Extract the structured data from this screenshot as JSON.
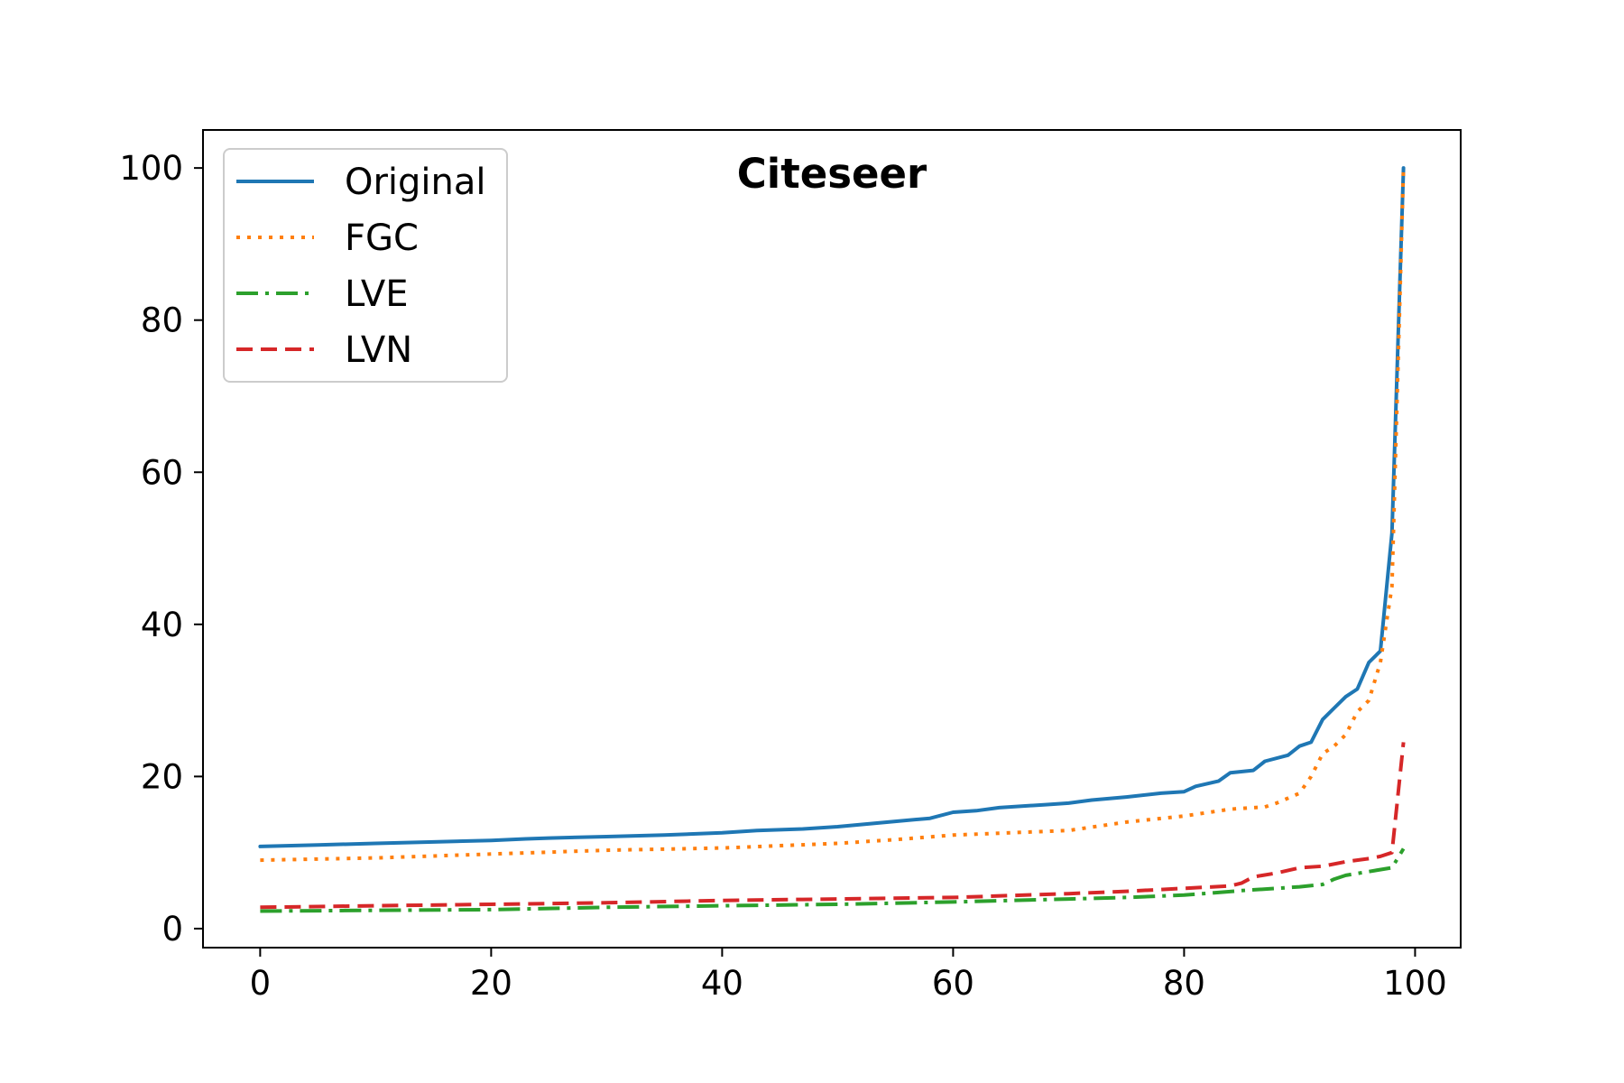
{
  "chart_data": {
    "type": "line",
    "title": "Citeseer",
    "xlabel": "",
    "ylabel": "",
    "xlim": [
      -4.95,
      103.95
    ],
    "ylim": [
      -2.5,
      105
    ],
    "xticks": [
      0,
      20,
      40,
      60,
      80,
      100
    ],
    "yticks": [
      0,
      20,
      40,
      60,
      80,
      100
    ],
    "grid": false,
    "legend_position": "top-left",
    "series": [
      {
        "name": "Original",
        "color": "#1f77b4",
        "style": "solid",
        "points": [
          [
            0,
            10.8
          ],
          [
            5,
            11.0
          ],
          [
            10,
            11.2
          ],
          [
            15,
            11.4
          ],
          [
            20,
            11.6
          ],
          [
            23,
            11.8
          ],
          [
            25,
            11.9
          ],
          [
            30,
            12.1
          ],
          [
            35,
            12.3
          ],
          [
            40,
            12.6
          ],
          [
            43,
            12.9
          ],
          [
            47,
            13.1
          ],
          [
            50,
            13.4
          ],
          [
            55,
            14.1
          ],
          [
            58,
            14.5
          ],
          [
            60,
            15.3
          ],
          [
            62,
            15.5
          ],
          [
            64,
            15.9
          ],
          [
            68,
            16.3
          ],
          [
            70,
            16.5
          ],
          [
            72,
            16.9
          ],
          [
            75,
            17.3
          ],
          [
            78,
            17.8
          ],
          [
            80,
            18.0
          ],
          [
            81,
            18.7
          ],
          [
            83,
            19.4
          ],
          [
            84,
            20.5
          ],
          [
            86,
            20.8
          ],
          [
            87,
            22.0
          ],
          [
            89,
            22.8
          ],
          [
            90,
            24.0
          ],
          [
            91,
            24.5
          ],
          [
            92,
            27.5
          ],
          [
            93,
            29.0
          ],
          [
            94,
            30.5
          ],
          [
            95,
            31.5
          ],
          [
            96,
            35.0
          ],
          [
            97,
            36.5
          ],
          [
            98,
            52.0
          ],
          [
            99,
            100.0
          ]
        ]
      },
      {
        "name": "FGC",
        "color": "#ff7f0e",
        "style": "dotted",
        "points": [
          [
            0,
            9.0
          ],
          [
            10,
            9.3
          ],
          [
            20,
            9.8
          ],
          [
            30,
            10.3
          ],
          [
            40,
            10.6
          ],
          [
            50,
            11.2
          ],
          [
            55,
            11.7
          ],
          [
            60,
            12.3
          ],
          [
            65,
            12.6
          ],
          [
            70,
            12.9
          ],
          [
            75,
            14.0
          ],
          [
            80,
            14.8
          ],
          [
            84,
            15.7
          ],
          [
            87,
            16.0
          ],
          [
            88,
            16.5
          ],
          [
            90,
            17.8
          ],
          [
            91,
            20.0
          ],
          [
            92,
            23.0
          ],
          [
            93,
            24.0
          ],
          [
            94,
            25.5
          ],
          [
            95,
            28.5
          ],
          [
            96,
            30.0
          ],
          [
            97,
            35.0
          ],
          [
            98,
            45.0
          ],
          [
            99,
            100.0
          ]
        ]
      },
      {
        "name": "LVE",
        "color": "#2ca02c",
        "style": "dashdot",
        "points": [
          [
            0,
            2.3
          ],
          [
            10,
            2.4
          ],
          [
            20,
            2.5
          ],
          [
            30,
            2.8
          ],
          [
            40,
            3.0
          ],
          [
            50,
            3.2
          ],
          [
            60,
            3.5
          ],
          [
            70,
            3.9
          ],
          [
            75,
            4.1
          ],
          [
            80,
            4.4
          ],
          [
            85,
            5.0
          ],
          [
            88,
            5.3
          ],
          [
            90,
            5.5
          ],
          [
            92,
            5.8
          ],
          [
            93,
            6.5
          ],
          [
            94,
            7.0
          ],
          [
            96,
            7.5
          ],
          [
            98,
            8.0
          ],
          [
            99,
            10.5
          ]
        ]
      },
      {
        "name": "LVN",
        "color": "#d62728",
        "style": "dashed",
        "points": [
          [
            0,
            2.8
          ],
          [
            10,
            3.0
          ],
          [
            20,
            3.2
          ],
          [
            30,
            3.4
          ],
          [
            40,
            3.7
          ],
          [
            50,
            3.9
          ],
          [
            60,
            4.1
          ],
          [
            70,
            4.6
          ],
          [
            75,
            4.9
          ],
          [
            80,
            5.3
          ],
          [
            84,
            5.6
          ],
          [
            85,
            6.0
          ],
          [
            86,
            6.8
          ],
          [
            88,
            7.3
          ],
          [
            90,
            8.0
          ],
          [
            92,
            8.2
          ],
          [
            94,
            8.8
          ],
          [
            96,
            9.2
          ],
          [
            97,
            9.5
          ],
          [
            98,
            10.0
          ],
          [
            99,
            24.5
          ]
        ]
      }
    ]
  }
}
